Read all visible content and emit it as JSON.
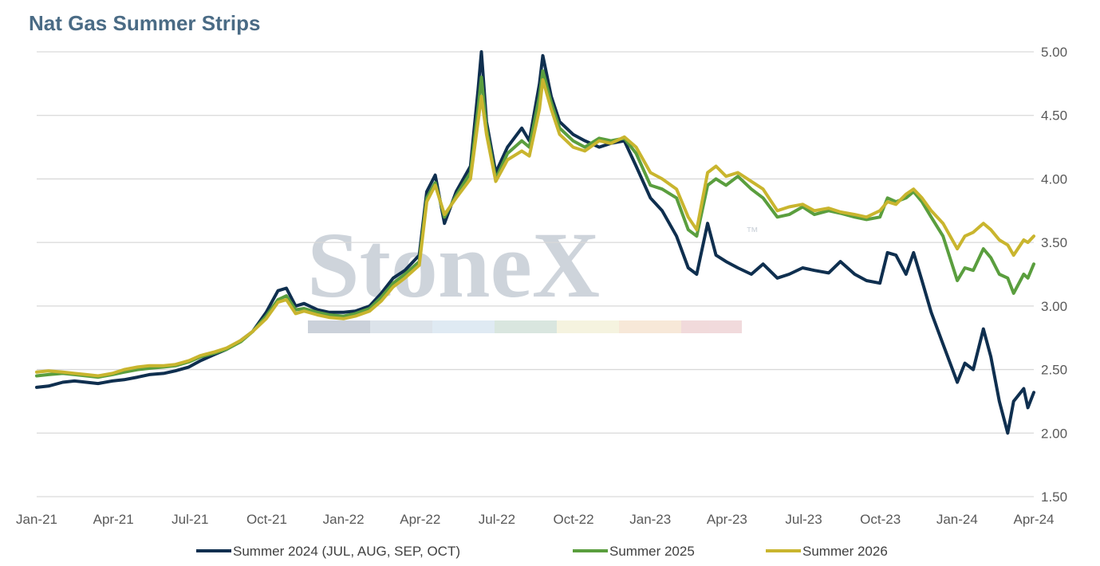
{
  "chart_data": {
    "type": "line",
    "title": "Nat Gas Summer Strips",
    "xlabel": "",
    "ylabel": "",
    "x_ticks": [
      "Jan-21",
      "Apr-21",
      "Jul-21",
      "Oct-21",
      "Jan-22",
      "Apr-22",
      "Jul-22",
      "Oct-22",
      "Jan-23",
      "Apr-23",
      "Jul-23",
      "Oct-23",
      "Jan-24",
      "Apr-24"
    ],
    "y_ticks": [
      "1.50",
      "2.00",
      "2.50",
      "3.00",
      "3.50",
      "4.00",
      "4.50",
      "5.00"
    ],
    "ylim": [
      1.5,
      5.0
    ],
    "xlim": [
      "2021-01-01",
      "2024-04-01"
    ],
    "y_axis_position": "right",
    "grid": "horizontal",
    "legend_position": "bottom",
    "watermark": "StoneX",
    "series": [
      {
        "name": "Summer 2024 (JUL, AUG, SEP, OCT)",
        "color": "#0f2f4f",
        "points": [
          [
            "2021-01-01",
            2.36
          ],
          [
            "2021-01-15",
            2.37
          ],
          [
            "2021-02-01",
            2.4
          ],
          [
            "2021-02-15",
            2.41
          ],
          [
            "2021-03-01",
            2.4
          ],
          [
            "2021-03-15",
            2.39
          ],
          [
            "2021-04-01",
            2.41
          ],
          [
            "2021-04-15",
            2.42
          ],
          [
            "2021-05-01",
            2.44
          ],
          [
            "2021-05-15",
            2.46
          ],
          [
            "2021-06-01",
            2.47
          ],
          [
            "2021-06-15",
            2.49
          ],
          [
            "2021-07-01",
            2.52
          ],
          [
            "2021-07-15",
            2.57
          ],
          [
            "2021-08-01",
            2.62
          ],
          [
            "2021-08-15",
            2.66
          ],
          [
            "2021-09-01",
            2.73
          ],
          [
            "2021-09-15",
            2.8
          ],
          [
            "2021-10-01",
            2.95
          ],
          [
            "2021-10-15",
            3.12
          ],
          [
            "2021-10-25",
            3.14
          ],
          [
            "2021-11-05",
            3.0
          ],
          [
            "2021-11-15",
            3.02
          ],
          [
            "2021-12-01",
            2.97
          ],
          [
            "2021-12-15",
            2.95
          ],
          [
            "2022-01-01",
            2.95
          ],
          [
            "2022-01-15",
            2.96
          ],
          [
            "2022-02-01",
            3.0
          ],
          [
            "2022-02-15",
            3.1
          ],
          [
            "2022-03-01",
            3.22
          ],
          [
            "2022-03-15",
            3.28
          ],
          [
            "2022-04-01",
            3.4
          ],
          [
            "2022-04-10",
            3.9
          ],
          [
            "2022-04-20",
            4.03
          ],
          [
            "2022-05-01",
            3.65
          ],
          [
            "2022-05-15",
            3.9
          ],
          [
            "2022-06-01",
            4.1
          ],
          [
            "2022-06-10",
            4.7
          ],
          [
            "2022-06-14",
            5.0
          ],
          [
            "2022-06-20",
            4.45
          ],
          [
            "2022-07-01",
            4.05
          ],
          [
            "2022-07-15",
            4.25
          ],
          [
            "2022-08-01",
            4.4
          ],
          [
            "2022-08-10",
            4.3
          ],
          [
            "2022-08-22",
            4.75
          ],
          [
            "2022-08-26",
            4.97
          ],
          [
            "2022-09-05",
            4.65
          ],
          [
            "2022-09-15",
            4.45
          ],
          [
            "2022-10-01",
            4.35
          ],
          [
            "2022-10-15",
            4.3
          ],
          [
            "2022-11-01",
            4.25
          ],
          [
            "2022-11-15",
            4.28
          ],
          [
            "2022-12-01",
            4.3
          ],
          [
            "2022-12-15",
            4.1
          ],
          [
            "2023-01-01",
            3.85
          ],
          [
            "2023-01-15",
            3.75
          ],
          [
            "2023-02-01",
            3.55
          ],
          [
            "2023-02-15",
            3.3
          ],
          [
            "2023-02-25",
            3.25
          ],
          [
            "2023-03-10",
            3.65
          ],
          [
            "2023-03-20",
            3.4
          ],
          [
            "2023-04-01",
            3.35
          ],
          [
            "2023-04-15",
            3.3
          ],
          [
            "2023-05-01",
            3.25
          ],
          [
            "2023-05-15",
            3.33
          ],
          [
            "2023-06-01",
            3.22
          ],
          [
            "2023-06-15",
            3.25
          ],
          [
            "2023-07-01",
            3.3
          ],
          [
            "2023-07-15",
            3.28
          ],
          [
            "2023-08-01",
            3.26
          ],
          [
            "2023-08-15",
            3.35
          ],
          [
            "2023-09-01",
            3.25
          ],
          [
            "2023-09-15",
            3.2
          ],
          [
            "2023-10-01",
            3.18
          ],
          [
            "2023-10-10",
            3.42
          ],
          [
            "2023-10-20",
            3.4
          ],
          [
            "2023-11-01",
            3.25
          ],
          [
            "2023-11-10",
            3.42
          ],
          [
            "2023-11-20",
            3.2
          ],
          [
            "2023-12-01",
            2.95
          ],
          [
            "2023-12-15",
            2.7
          ],
          [
            "2024-01-01",
            2.4
          ],
          [
            "2024-01-10",
            2.55
          ],
          [
            "2024-01-20",
            2.5
          ],
          [
            "2024-02-01",
            2.82
          ],
          [
            "2024-02-10",
            2.6
          ],
          [
            "2024-02-20",
            2.25
          ],
          [
            "2024-03-01",
            2.0
          ],
          [
            "2024-03-08",
            2.25
          ],
          [
            "2024-03-20",
            2.35
          ],
          [
            "2024-03-25",
            2.2
          ],
          [
            "2024-04-01",
            2.32
          ]
        ]
      },
      {
        "name": "Summer 2025",
        "color": "#5a9e3e",
        "points": [
          [
            "2021-01-01",
            2.45
          ],
          [
            "2021-01-15",
            2.46
          ],
          [
            "2021-02-01",
            2.47
          ],
          [
            "2021-02-15",
            2.46
          ],
          [
            "2021-03-01",
            2.45
          ],
          [
            "2021-03-15",
            2.44
          ],
          [
            "2021-04-01",
            2.46
          ],
          [
            "2021-04-15",
            2.48
          ],
          [
            "2021-05-01",
            2.5
          ],
          [
            "2021-05-15",
            2.51
          ],
          [
            "2021-06-01",
            2.52
          ],
          [
            "2021-06-15",
            2.53
          ],
          [
            "2021-07-01",
            2.56
          ],
          [
            "2021-07-15",
            2.6
          ],
          [
            "2021-08-01",
            2.63
          ],
          [
            "2021-08-15",
            2.66
          ],
          [
            "2021-09-01",
            2.72
          ],
          [
            "2021-09-15",
            2.8
          ],
          [
            "2021-10-01",
            2.92
          ],
          [
            "2021-10-15",
            3.05
          ],
          [
            "2021-10-25",
            3.08
          ],
          [
            "2021-11-05",
            2.97
          ],
          [
            "2021-11-15",
            2.98
          ],
          [
            "2021-12-01",
            2.95
          ],
          [
            "2021-12-15",
            2.93
          ],
          [
            "2022-01-01",
            2.92
          ],
          [
            "2022-01-15",
            2.94
          ],
          [
            "2022-02-01",
            2.98
          ],
          [
            "2022-02-15",
            3.07
          ],
          [
            "2022-03-01",
            3.18
          ],
          [
            "2022-03-15",
            3.25
          ],
          [
            "2022-04-01",
            3.35
          ],
          [
            "2022-04-10",
            3.85
          ],
          [
            "2022-04-20",
            3.97
          ],
          [
            "2022-05-01",
            3.7
          ],
          [
            "2022-05-15",
            3.87
          ],
          [
            "2022-06-01",
            4.05
          ],
          [
            "2022-06-10",
            4.55
          ],
          [
            "2022-06-14",
            4.8
          ],
          [
            "2022-06-20",
            4.4
          ],
          [
            "2022-07-01",
            4.0
          ],
          [
            "2022-07-15",
            4.2
          ],
          [
            "2022-08-01",
            4.3
          ],
          [
            "2022-08-10",
            4.25
          ],
          [
            "2022-08-22",
            4.65
          ],
          [
            "2022-08-26",
            4.85
          ],
          [
            "2022-09-05",
            4.6
          ],
          [
            "2022-09-15",
            4.4
          ],
          [
            "2022-10-01",
            4.3
          ],
          [
            "2022-10-15",
            4.25
          ],
          [
            "2022-11-01",
            4.32
          ],
          [
            "2022-11-15",
            4.3
          ],
          [
            "2022-12-01",
            4.32
          ],
          [
            "2022-12-15",
            4.2
          ],
          [
            "2023-01-01",
            3.95
          ],
          [
            "2023-01-15",
            3.92
          ],
          [
            "2023-02-01",
            3.85
          ],
          [
            "2023-02-15",
            3.6
          ],
          [
            "2023-02-25",
            3.55
          ],
          [
            "2023-03-10",
            3.95
          ],
          [
            "2023-03-20",
            4.0
          ],
          [
            "2023-04-01",
            3.95
          ],
          [
            "2023-04-15",
            4.02
          ],
          [
            "2023-05-01",
            3.92
          ],
          [
            "2023-05-15",
            3.85
          ],
          [
            "2023-06-01",
            3.7
          ],
          [
            "2023-06-15",
            3.72
          ],
          [
            "2023-07-01",
            3.78
          ],
          [
            "2023-07-15",
            3.72
          ],
          [
            "2023-08-01",
            3.75
          ],
          [
            "2023-08-15",
            3.73
          ],
          [
            "2023-09-01",
            3.7
          ],
          [
            "2023-09-15",
            3.68
          ],
          [
            "2023-10-01",
            3.7
          ],
          [
            "2023-10-10",
            3.85
          ],
          [
            "2023-10-20",
            3.82
          ],
          [
            "2023-11-01",
            3.85
          ],
          [
            "2023-11-10",
            3.9
          ],
          [
            "2023-11-20",
            3.82
          ],
          [
            "2023-12-01",
            3.7
          ],
          [
            "2023-12-15",
            3.55
          ],
          [
            "2024-01-01",
            3.2
          ],
          [
            "2024-01-10",
            3.3
          ],
          [
            "2024-01-20",
            3.28
          ],
          [
            "2024-02-01",
            3.45
          ],
          [
            "2024-02-10",
            3.38
          ],
          [
            "2024-02-20",
            3.25
          ],
          [
            "2024-03-01",
            3.22
          ],
          [
            "2024-03-08",
            3.1
          ],
          [
            "2024-03-20",
            3.25
          ],
          [
            "2024-03-25",
            3.22
          ],
          [
            "2024-04-01",
            3.33
          ]
        ]
      },
      {
        "name": "Summer 2026",
        "color": "#c9b52e",
        "points": [
          [
            "2021-01-01",
            2.48
          ],
          [
            "2021-01-15",
            2.49
          ],
          [
            "2021-02-01",
            2.48
          ],
          [
            "2021-02-15",
            2.47
          ],
          [
            "2021-03-01",
            2.46
          ],
          [
            "2021-03-15",
            2.45
          ],
          [
            "2021-04-01",
            2.47
          ],
          [
            "2021-04-15",
            2.5
          ],
          [
            "2021-05-01",
            2.52
          ],
          [
            "2021-05-15",
            2.53
          ],
          [
            "2021-06-01",
            2.53
          ],
          [
            "2021-06-15",
            2.54
          ],
          [
            "2021-07-01",
            2.57
          ],
          [
            "2021-07-15",
            2.61
          ],
          [
            "2021-08-01",
            2.64
          ],
          [
            "2021-08-15",
            2.67
          ],
          [
            "2021-09-01",
            2.73
          ],
          [
            "2021-09-15",
            2.8
          ],
          [
            "2021-10-01",
            2.9
          ],
          [
            "2021-10-15",
            3.03
          ],
          [
            "2021-10-25",
            3.05
          ],
          [
            "2021-11-05",
            2.94
          ],
          [
            "2021-11-15",
            2.96
          ],
          [
            "2021-12-01",
            2.93
          ],
          [
            "2021-12-15",
            2.91
          ],
          [
            "2022-01-01",
            2.9
          ],
          [
            "2022-01-15",
            2.92
          ],
          [
            "2022-02-01",
            2.96
          ],
          [
            "2022-02-15",
            3.04
          ],
          [
            "2022-03-01",
            3.15
          ],
          [
            "2022-03-15",
            3.22
          ],
          [
            "2022-04-01",
            3.32
          ],
          [
            "2022-04-10",
            3.82
          ],
          [
            "2022-04-20",
            3.95
          ],
          [
            "2022-05-01",
            3.72
          ],
          [
            "2022-05-15",
            3.85
          ],
          [
            "2022-06-01",
            4.0
          ],
          [
            "2022-06-10",
            4.45
          ],
          [
            "2022-06-14",
            4.65
          ],
          [
            "2022-06-20",
            4.35
          ],
          [
            "2022-07-01",
            3.98
          ],
          [
            "2022-07-15",
            4.15
          ],
          [
            "2022-08-01",
            4.22
          ],
          [
            "2022-08-10",
            4.18
          ],
          [
            "2022-08-22",
            4.55
          ],
          [
            "2022-08-26",
            4.78
          ],
          [
            "2022-09-05",
            4.55
          ],
          [
            "2022-09-15",
            4.35
          ],
          [
            "2022-10-01",
            4.25
          ],
          [
            "2022-10-15",
            4.22
          ],
          [
            "2022-11-01",
            4.3
          ],
          [
            "2022-11-15",
            4.28
          ],
          [
            "2022-12-01",
            4.33
          ],
          [
            "2022-12-15",
            4.25
          ],
          [
            "2023-01-01",
            4.05
          ],
          [
            "2023-01-15",
            4.0
          ],
          [
            "2023-02-01",
            3.92
          ],
          [
            "2023-02-15",
            3.7
          ],
          [
            "2023-02-25",
            3.6
          ],
          [
            "2023-03-10",
            4.05
          ],
          [
            "2023-03-20",
            4.1
          ],
          [
            "2023-04-01",
            4.02
          ],
          [
            "2023-04-15",
            4.05
          ],
          [
            "2023-05-01",
            3.98
          ],
          [
            "2023-05-15",
            3.92
          ],
          [
            "2023-06-01",
            3.75
          ],
          [
            "2023-06-15",
            3.78
          ],
          [
            "2023-07-01",
            3.8
          ],
          [
            "2023-07-15",
            3.75
          ],
          [
            "2023-08-01",
            3.77
          ],
          [
            "2023-08-15",
            3.74
          ],
          [
            "2023-09-01",
            3.72
          ],
          [
            "2023-09-15",
            3.7
          ],
          [
            "2023-10-01",
            3.75
          ],
          [
            "2023-10-10",
            3.82
          ],
          [
            "2023-10-20",
            3.8
          ],
          [
            "2023-11-01",
            3.88
          ],
          [
            "2023-11-10",
            3.92
          ],
          [
            "2023-11-20",
            3.85
          ],
          [
            "2023-12-01",
            3.75
          ],
          [
            "2023-12-15",
            3.65
          ],
          [
            "2024-01-01",
            3.45
          ],
          [
            "2024-01-10",
            3.55
          ],
          [
            "2024-01-20",
            3.58
          ],
          [
            "2024-02-01",
            3.65
          ],
          [
            "2024-02-10",
            3.6
          ],
          [
            "2024-02-20",
            3.52
          ],
          [
            "2024-03-01",
            3.48
          ],
          [
            "2024-03-08",
            3.4
          ],
          [
            "2024-03-20",
            3.52
          ],
          [
            "2024-03-25",
            3.5
          ],
          [
            "2024-04-01",
            3.55
          ]
        ]
      }
    ]
  }
}
